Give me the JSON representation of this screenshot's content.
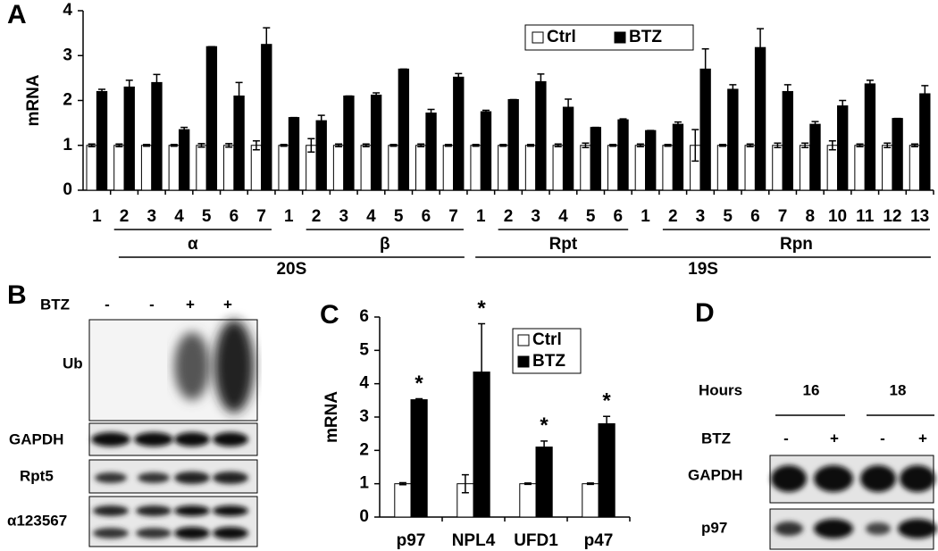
{
  "chart_data": [
    {
      "type": "bar",
      "panel_label": "A",
      "y_label": "mRNA",
      "categories": [
        "1",
        "2",
        "3",
        "4",
        "5",
        "6",
        "7",
        "1",
        "2",
        "3",
        "4",
        "5",
        "6",
        "7",
        "1",
        "2",
        "3",
        "4",
        "5",
        "6",
        "1",
        "2",
        "3",
        "5",
        "6",
        "7",
        "8",
        "10",
        "11",
        "12",
        "13"
      ],
      "group_labels": [
        "α",
        "β",
        "Rpt",
        "Rpn"
      ],
      "supergroup_labels": [
        "20S",
        "19S"
      ],
      "series": [
        {
          "name": "Ctrl",
          "color": "#ffffff",
          "values": [
            1,
            1,
            1,
            1,
            1,
            1,
            1,
            1,
            1,
            1,
            1,
            1,
            1,
            1,
            1,
            1,
            1,
            1,
            1,
            1,
            1,
            1,
            1,
            1,
            1,
            1,
            1,
            1,
            1,
            1,
            1
          ],
          "errors": [
            0.03,
            0.03,
            0.02,
            0.02,
            0.04,
            0.04,
            0.1,
            0.02,
            0.15,
            0.03,
            0.03,
            0.02,
            0.03,
            0.02,
            0.02,
            0.02,
            0.02,
            0.03,
            0.05,
            0.02,
            0.03,
            0.02,
            0.35,
            0.02,
            0.03,
            0.05,
            0.05,
            0.1,
            0.03,
            0.05,
            0.03
          ]
        },
        {
          "name": "BTZ",
          "color": "#000000",
          "values": [
            2.2,
            2.3,
            2.4,
            1.35,
            3.2,
            2.1,
            3.25,
            1.62,
            1.55,
            2.1,
            2.12,
            2.7,
            1.72,
            2.52,
            1.75,
            2.02,
            2.42,
            1.85,
            1.4,
            1.57,
            1.33,
            1.47,
            2.7,
            2.25,
            3.18,
            2.2,
            1.47,
            1.88,
            2.37,
            1.6,
            2.15
          ],
          "errors": [
            0.05,
            0.15,
            0.18,
            0.05,
            0,
            0.3,
            0.37,
            0,
            0.12,
            0,
            0.05,
            0,
            0.08,
            0.08,
            0.03,
            0,
            0.17,
            0.18,
            0,
            0.02,
            0,
            0.05,
            0.45,
            0.1,
            0.42,
            0.15,
            0.06,
            0.12,
            0.08,
            0,
            0.18
          ]
        }
      ],
      "ylim": [
        0,
        4
      ],
      "yticks": [
        0,
        1,
        2,
        3,
        4
      ],
      "legend": "upper right"
    },
    {
      "type": "bar",
      "panel_label": "C",
      "y_label": "mRNA",
      "categories": [
        "p97",
        "NPL4",
        "UFD1",
        "p47"
      ],
      "annotations": [
        "*",
        "*",
        "*",
        "*"
      ],
      "series": [
        {
          "name": "Ctrl",
          "color": "#ffffff",
          "values": [
            1,
            1,
            1,
            1
          ],
          "errors": [
            0.03,
            0.27,
            0.02,
            0.02
          ]
        },
        {
          "name": "BTZ",
          "color": "#000000",
          "values": [
            3.52,
            4.35,
            2.1,
            2.8
          ],
          "errors": [
            0.03,
            1.45,
            0.18,
            0.22
          ]
        }
      ],
      "ylim": [
        0,
        6
      ],
      "yticks": [
        0,
        1,
        2,
        3,
        4,
        5,
        6
      ],
      "legend": "upper right"
    }
  ],
  "blots": {
    "B": {
      "label": "B",
      "treatment_label": "BTZ",
      "lanes": [
        "-",
        "-",
        "+",
        "+"
      ],
      "rows": [
        "Ub",
        "GAPDH",
        "Rpt5",
        "α123567"
      ]
    },
    "D": {
      "label": "D",
      "time_label": "Hours",
      "times": [
        "16",
        "18"
      ],
      "treatment_label": "BTZ",
      "lanes": [
        "-",
        "+",
        "-",
        "+"
      ],
      "rows": [
        "GAPDH",
        "p97"
      ]
    }
  }
}
